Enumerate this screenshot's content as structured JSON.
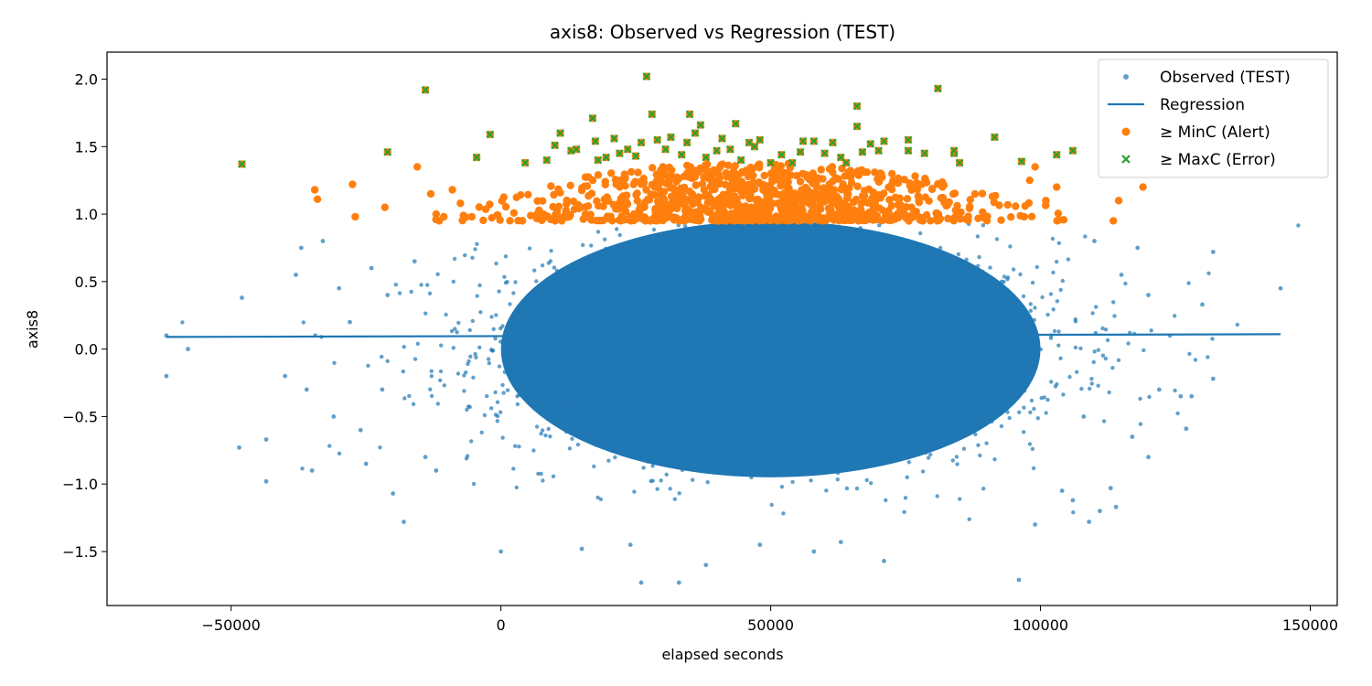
{
  "chart_data": {
    "type": "scatter",
    "title": "axis8: Observed vs Regression (TEST)",
    "xlabel": "elapsed seconds",
    "ylabel": "axis8",
    "xlim": [
      -73000,
      155000
    ],
    "ylim": [
      -1.9,
      2.2
    ],
    "x_ticks": [
      -50000,
      0,
      50000,
      100000,
      150000
    ],
    "x_tick_labels": [
      "−50000",
      "0",
      "50000",
      "100000",
      "150000"
    ],
    "y_ticks": [
      -1.5,
      -1.0,
      -0.5,
      0.0,
      0.5,
      1.0,
      1.5,
      2.0
    ],
    "y_tick_labels": [
      "−1.5",
      "−1.0",
      "−0.5",
      "0.0",
      "0.5",
      "1.0",
      "1.5",
      "2.0"
    ],
    "grid": false,
    "legend_position": "top-right",
    "colors": {
      "observed": "#1f77b4",
      "regression": "#1f77b4",
      "alert": "#ff7f0e",
      "error": "#2ca02c"
    },
    "series": [
      {
        "name": "Observed (TEST)",
        "kind": "scatter-dense",
        "center_x": 50000,
        "center_y": 0.0,
        "core_x_range": [
          -5000,
          95000
        ],
        "core_y_range": [
          -0.95,
          0.95
        ],
        "outlier_points": [
          [
            -62000,
            0.1
          ],
          [
            -62000,
            -0.2
          ],
          [
            -58000,
            0.0
          ],
          [
            -48500,
            -0.73
          ],
          [
            -48000,
            0.38
          ],
          [
            -43500,
            -0.98
          ],
          [
            -43500,
            -0.67
          ],
          [
            -40000,
            -0.2
          ],
          [
            -38000,
            0.55
          ],
          [
            -37000,
            0.75
          ],
          [
            -36000,
            -0.3
          ],
          [
            -35000,
            -0.9
          ],
          [
            -33000,
            0.8
          ],
          [
            -31000,
            -0.5
          ],
          [
            -28000,
            0.2
          ],
          [
            -26000,
            -0.6
          ],
          [
            -24000,
            0.6
          ],
          [
            -22000,
            -0.3
          ],
          [
            -21000,
            0.4
          ],
          [
            -20000,
            -1.07
          ],
          [
            -18000,
            -1.28
          ],
          [
            -16000,
            0.65
          ],
          [
            -14000,
            -0.8
          ],
          [
            0,
            -1.5
          ],
          [
            15000,
            -1.48
          ],
          [
            24000,
            -1.45
          ],
          [
            26000,
            -1.73
          ],
          [
            33000,
            -1.73
          ],
          [
            38000,
            -1.6
          ],
          [
            48000,
            -1.45
          ],
          [
            58000,
            -1.5
          ],
          [
            63000,
            -1.43
          ],
          [
            71000,
            -1.57
          ],
          [
            96000,
            -1.71
          ],
          [
            99000,
            -1.3
          ],
          [
            104000,
            -1.05
          ],
          [
            106000,
            -1.12
          ],
          [
            109000,
            -1.28
          ],
          [
            111000,
            -1.2
          ],
          [
            113000,
            -1.03
          ],
          [
            114000,
            -1.17
          ],
          [
            117000,
            -0.65
          ],
          [
            118000,
            0.75
          ],
          [
            120000,
            0.4
          ],
          [
            122000,
            -0.3
          ],
          [
            124000,
            0.1
          ],
          [
            126000,
            -0.35
          ],
          [
            127000,
            -0.59
          ],
          [
            128000,
            -0.35
          ],
          [
            130000,
            0.33
          ],
          [
            132000,
            0.72
          ],
          [
            132000,
            -0.22
          ],
          [
            144500,
            0.45
          ],
          [
            110000,
            0.8
          ],
          [
            115000,
            0.55
          ],
          [
            120000,
            -0.8
          ],
          [
            -30000,
            0.45
          ],
          [
            -25000,
            -0.85
          ],
          [
            -12000,
            -0.9
          ],
          [
            108000,
            -0.5
          ]
        ]
      },
      {
        "name": "Regression",
        "kind": "line",
        "x": [
          -62000,
          144500
        ],
        "y": [
          0.09,
          0.11
        ]
      },
      {
        "name": "≥ MinC (Alert)",
        "kind": "scatter-band",
        "band_y_range": [
          0.95,
          1.38
        ],
        "band_x_range": [
          -14000,
          112000
        ],
        "outlier_points": [
          [
            -34500,
            1.18
          ],
          [
            -34000,
            1.11
          ],
          [
            -27500,
            1.22
          ],
          [
            -27000,
            0.98
          ],
          [
            -21500,
            1.05
          ],
          [
            -15500,
            1.35
          ],
          [
            -13000,
            1.15
          ],
          [
            -12000,
            1.0
          ],
          [
            -9000,
            1.18
          ],
          [
            -7500,
            1.08
          ],
          [
            97000,
            0.98
          ],
          [
            99000,
            1.35
          ],
          [
            103000,
            1.2
          ],
          [
            113500,
            0.95
          ],
          [
            114500,
            1.1
          ],
          [
            119000,
            1.2
          ],
          [
            98000,
            1.25
          ],
          [
            101000,
            1.1
          ]
        ]
      },
      {
        "name": "≥ MaxC (Error)",
        "kind": "scatter",
        "points": [
          [
            -48000,
            1.37
          ],
          [
            -21000,
            1.46
          ],
          [
            -14000,
            1.92
          ],
          [
            -4500,
            1.42
          ],
          [
            -2000,
            1.59
          ],
          [
            4500,
            1.38
          ],
          [
            8500,
            1.4
          ],
          [
            10000,
            1.51
          ],
          [
            11000,
            1.6
          ],
          [
            13000,
            1.47
          ],
          [
            14000,
            1.48
          ],
          [
            17000,
            1.71
          ],
          [
            17500,
            1.54
          ],
          [
            18000,
            1.4
          ],
          [
            19500,
            1.42
          ],
          [
            21000,
            1.56
          ],
          [
            22000,
            1.45
          ],
          [
            23500,
            1.48
          ],
          [
            25000,
            1.43
          ],
          [
            26000,
            1.53
          ],
          [
            27000,
            2.02
          ],
          [
            28000,
            1.74
          ],
          [
            29000,
            1.55
          ],
          [
            30500,
            1.48
          ],
          [
            31500,
            1.57
          ],
          [
            33500,
            1.44
          ],
          [
            34500,
            1.53
          ],
          [
            35000,
            1.74
          ],
          [
            36000,
            1.6
          ],
          [
            37000,
            1.66
          ],
          [
            38000,
            1.42
          ],
          [
            40000,
            1.47
          ],
          [
            41000,
            1.56
          ],
          [
            42500,
            1.48
          ],
          [
            43500,
            1.67
          ],
          [
            44500,
            1.4
          ],
          [
            46000,
            1.53
          ],
          [
            47000,
            1.5
          ],
          [
            48000,
            1.55
          ],
          [
            50000,
            1.38
          ],
          [
            52000,
            1.44
          ],
          [
            54000,
            1.38
          ],
          [
            55500,
            1.46
          ],
          [
            56000,
            1.54
          ],
          [
            58000,
            1.54
          ],
          [
            60000,
            1.45
          ],
          [
            61500,
            1.53
          ],
          [
            63000,
            1.42
          ],
          [
            64000,
            1.38
          ],
          [
            66000,
            1.8
          ],
          [
            66000,
            1.65
          ],
          [
            67000,
            1.46
          ],
          [
            68500,
            1.52
          ],
          [
            70000,
            1.47
          ],
          [
            71000,
            1.54
          ],
          [
            75500,
            1.55
          ],
          [
            75500,
            1.47
          ],
          [
            78500,
            1.45
          ],
          [
            81000,
            1.93
          ],
          [
            84000,
            1.45
          ],
          [
            85000,
            1.38
          ],
          [
            91500,
            1.57
          ],
          [
            96500,
            1.39
          ],
          [
            103000,
            1.44
          ],
          [
            106000,
            1.47
          ],
          [
            84000,
            1.47
          ]
        ]
      }
    ]
  }
}
